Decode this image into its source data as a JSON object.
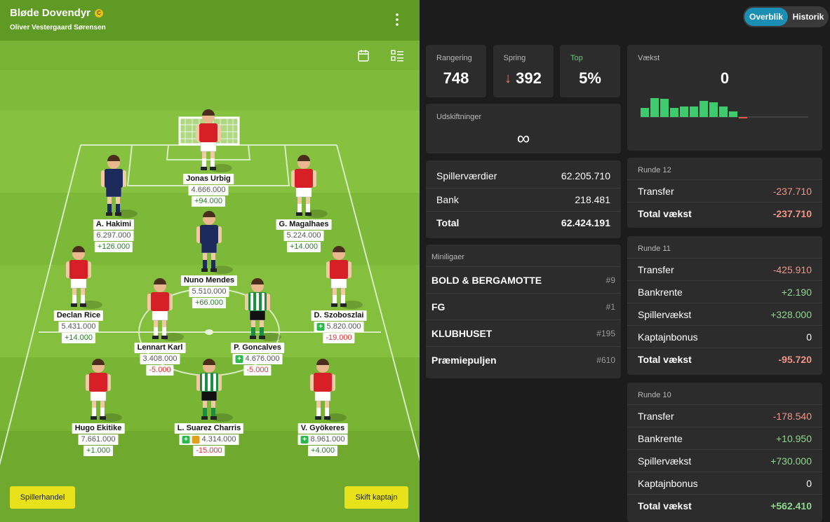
{
  "team": {
    "name": "Bløde Dovendyr",
    "badge": "C",
    "manager": "Oliver Vestergaard Sørensen"
  },
  "players": [
    {
      "name": "Jonas Urbig",
      "value": "4.666.000",
      "change": "+94.000"
    },
    {
      "name": "A. Hakimi",
      "value": "6.297.000",
      "change": "+126.000"
    },
    {
      "name": "G. Magalhaes",
      "value": "5.224.000",
      "change": "+14.000"
    },
    {
      "name": "Nuno Mendes",
      "value": "5.510.000",
      "change": "+66.000"
    },
    {
      "name": "Declan Rice",
      "value": "5.431.000",
      "change": "+14.000"
    },
    {
      "name": "D. Szoboszlai",
      "value": "5.820.000",
      "change": "-19.000"
    },
    {
      "name": "Lennart Karl",
      "value": "3.408.000",
      "change": "-5.000"
    },
    {
      "name": "P. Goncalves",
      "value": "4.676.000",
      "change": "-5.000"
    },
    {
      "name": "Hugo Ekitike",
      "value": "7.661.000",
      "change": "+1.000"
    },
    {
      "name": "L. Suarez Charris",
      "value": "4.314.000",
      "change": "-15.000"
    },
    {
      "name": "V. Gyökeres",
      "value": "8.961.000",
      "change": "+4.000"
    }
  ],
  "buttons": {
    "trade": "Spillerhandel",
    "captain": "Skift kaptajn"
  },
  "tabs": [
    "Overblik",
    "Historik"
  ],
  "stats": [
    {
      "label": "Rangering",
      "value": 748
    },
    {
      "label": "Spring",
      "value": 392
    },
    {
      "label": "Top",
      "value": "5%"
    }
  ],
  "substitutions": {
    "label": "Udskiftninger",
    "value": "∞"
  },
  "growth": {
    "label": "Vækst",
    "value": 0,
    "bars": [
      13,
      27,
      26,
      13,
      15,
      15,
      23,
      21,
      15,
      8,
      -2
    ]
  },
  "values_table": [
    [
      "Spillerværdier",
      "62.205.710"
    ],
    [
      "Bank",
      "218.481"
    ],
    [
      "Total",
      "62.424.191"
    ]
  ],
  "minileagues": {
    "title": "Miniligaer",
    "rows": [
      [
        "BOLD & BERGAMOTTE",
        "#9"
      ],
      [
        "FG",
        "#1"
      ],
      [
        "KLUBHUSET",
        "#195"
      ],
      [
        "Præmiepuljen",
        "#610"
      ]
    ]
  },
  "rounds": [
    {
      "title": "Runde 12",
      "rows": [
        [
          "Transfer",
          "-237.710"
        ],
        [
          "Total vækst",
          "-237.710"
        ]
      ]
    },
    {
      "title": "Runde 11",
      "rows": [
        [
          "Transfer",
          "-425.910"
        ],
        [
          "Bankrente",
          "+2.190"
        ],
        [
          "Spillervækst",
          "+328.000"
        ],
        [
          "Kaptajnbonus",
          "0"
        ],
        [
          "Total vækst",
          "-95.720"
        ]
      ]
    },
    {
      "title": "Runde 10",
      "rows": [
        [
          "Transfer",
          "-178.540"
        ],
        [
          "Bankrente",
          "+10.950"
        ],
        [
          "Spillervækst",
          "+730.000"
        ],
        [
          "Kaptajnbonus",
          "0"
        ],
        [
          "Total vækst",
          "+562.410"
        ]
      ]
    }
  ]
}
